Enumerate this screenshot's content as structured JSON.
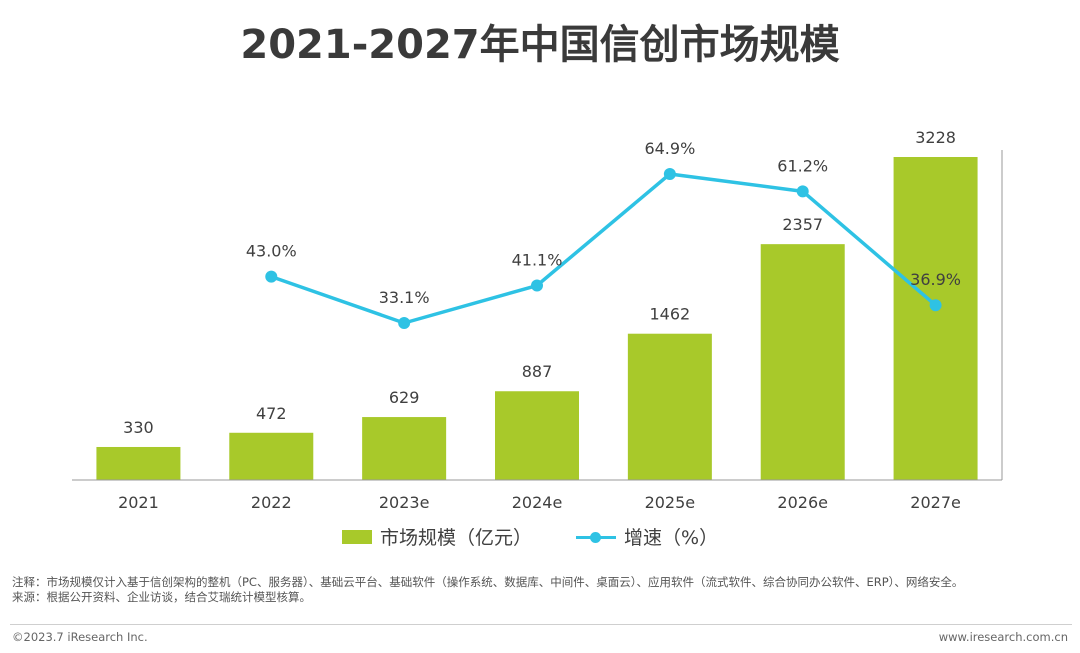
{
  "title": "2021-2027年中国信创市场规模",
  "chart_data": {
    "type": "bar",
    "categories": [
      "2021",
      "2022",
      "2023e",
      "2024e",
      "2025e",
      "2026e",
      "2027e"
    ],
    "series": [
      {
        "name": "市场规模（亿元）",
        "type": "bar",
        "values": [
          330,
          472,
          629,
          887,
          1462,
          2357,
          3228
        ],
        "labels": [
          "330",
          "472",
          "629",
          "887",
          "1462",
          "2357",
          "3228"
        ],
        "color": "#a8c92a"
      },
      {
        "name": "增速（%）",
        "type": "line",
        "values": [
          null,
          43.0,
          33.1,
          41.1,
          64.9,
          61.2,
          36.9
        ],
        "labels": [
          "",
          "43.0%",
          "33.1%",
          "41.1%",
          "64.9%",
          "61.2%",
          "36.9%"
        ],
        "color": "#2ec2e4"
      }
    ],
    "ylim_bar": [
      0,
      3500
    ],
    "ylim_line": [
      0,
      90
    ],
    "grid": false,
    "legend_position": "bottom"
  },
  "notes": {
    "line1": "注释：市场规模仅计入基于信创架构的整机（PC、服务器）、基础云平台、基础软件（操作系统、数据库、中间件、桌面云）、应用软件（流式软件、综合协同办公软件、ERP）、网络安全。",
    "line2": "来源：根据公开资料、企业访谈，结合艾瑞统计模型核算。"
  },
  "footer": {
    "copyright": "©2023.7 iResearch Inc.",
    "website": "www.iresearch.com.cn"
  }
}
